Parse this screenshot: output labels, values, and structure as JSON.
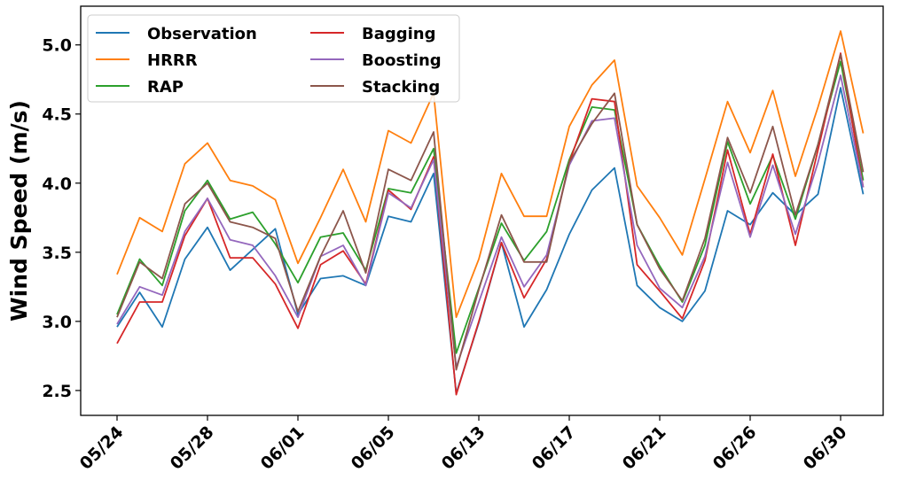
{
  "chart_data": {
    "type": "line",
    "xlabel": "",
    "ylabel": "Wind Speed (m/s)",
    "ylim": [
      2.32,
      5.28
    ],
    "yticks": [
      "2.5",
      "3.0",
      "3.5",
      "4.0",
      "4.5",
      "5.0"
    ],
    "ytick_values": [
      2.5,
      3.0,
      3.5,
      4.0,
      4.5,
      5.0
    ],
    "xticks": [
      "05/24",
      "05/28",
      "06/01",
      "06/05",
      "06/13",
      "06/17",
      "06/21",
      "06/26",
      "06/30"
    ],
    "xtick_positions": [
      0,
      4,
      8,
      12,
      16,
      20,
      24,
      28,
      32
    ],
    "x_count": 34,
    "legend": "top-left, 2 columns",
    "grid": false,
    "series": [
      {
        "name": "Observation",
        "color": "#1f77b4",
        "values": [
          2.96,
          3.21,
          2.96,
          3.45,
          3.68,
          3.37,
          3.52,
          3.67,
          3.05,
          3.31,
          3.33,
          3.26,
          3.76,
          3.72,
          4.07,
          2.48,
          2.99,
          3.57,
          2.96,
          3.23,
          3.63,
          3.95,
          4.11,
          3.26,
          3.1,
          3.0,
          3.22,
          3.8,
          3.7,
          3.93,
          3.77,
          3.92,
          4.69,
          3.92
        ]
      },
      {
        "name": "HRRR",
        "color": "#ff7f0e",
        "values": [
          3.34,
          3.75,
          3.65,
          4.14,
          4.29,
          4.02,
          3.98,
          3.88,
          3.42,
          3.75,
          4.1,
          3.72,
          4.38,
          4.29,
          4.65,
          3.03,
          3.45,
          4.07,
          3.76,
          3.76,
          4.41,
          4.71,
          4.89,
          3.98,
          3.75,
          3.48,
          4.03,
          4.59,
          4.22,
          4.67,
          4.05,
          4.55,
          5.1,
          4.36
        ]
      },
      {
        "name": "RAP",
        "color": "#2ca02c",
        "values": [
          3.05,
          3.45,
          3.26,
          3.8,
          4.02,
          3.74,
          3.79,
          3.56,
          3.28,
          3.61,
          3.64,
          3.37,
          3.96,
          3.93,
          4.25,
          2.77,
          3.24,
          3.71,
          3.44,
          3.65,
          4.17,
          4.55,
          4.53,
          3.7,
          3.4,
          3.14,
          3.55,
          4.3,
          3.85,
          4.2,
          3.74,
          4.28,
          4.88,
          4.02
        ]
      },
      {
        "name": "Bagging",
        "color": "#d62728",
        "values": [
          2.84,
          3.14,
          3.14,
          3.62,
          3.89,
          3.46,
          3.46,
          3.27,
          2.95,
          3.41,
          3.51,
          3.27,
          3.95,
          3.81,
          4.19,
          2.47,
          3.0,
          3.57,
          3.17,
          3.45,
          4.15,
          4.61,
          4.59,
          3.41,
          3.22,
          3.02,
          3.44,
          4.24,
          3.63,
          4.21,
          3.55,
          4.24,
          4.94,
          3.97
        ]
      },
      {
        "name": "Boosting",
        "color": "#9467bd",
        "values": [
          2.98,
          3.25,
          3.19,
          3.65,
          3.89,
          3.59,
          3.55,
          3.33,
          3.03,
          3.47,
          3.55,
          3.26,
          3.93,
          3.82,
          4.17,
          2.67,
          3.14,
          3.61,
          3.25,
          3.48,
          4.13,
          4.45,
          4.47,
          3.55,
          3.24,
          3.1,
          3.47,
          4.15,
          3.61,
          4.13,
          3.63,
          4.15,
          4.78,
          3.97
        ]
      },
      {
        "name": "Stacking",
        "color": "#8c564b",
        "values": [
          3.03,
          3.43,
          3.31,
          3.85,
          4.0,
          3.72,
          3.68,
          3.6,
          3.07,
          3.47,
          3.8,
          3.35,
          4.1,
          4.02,
          4.37,
          2.65,
          3.23,
          3.77,
          3.43,
          3.43,
          4.15,
          4.43,
          4.65,
          3.7,
          3.38,
          3.15,
          3.6,
          4.33,
          3.93,
          4.41,
          3.77,
          4.28,
          4.93,
          4.08
        ]
      }
    ]
  }
}
